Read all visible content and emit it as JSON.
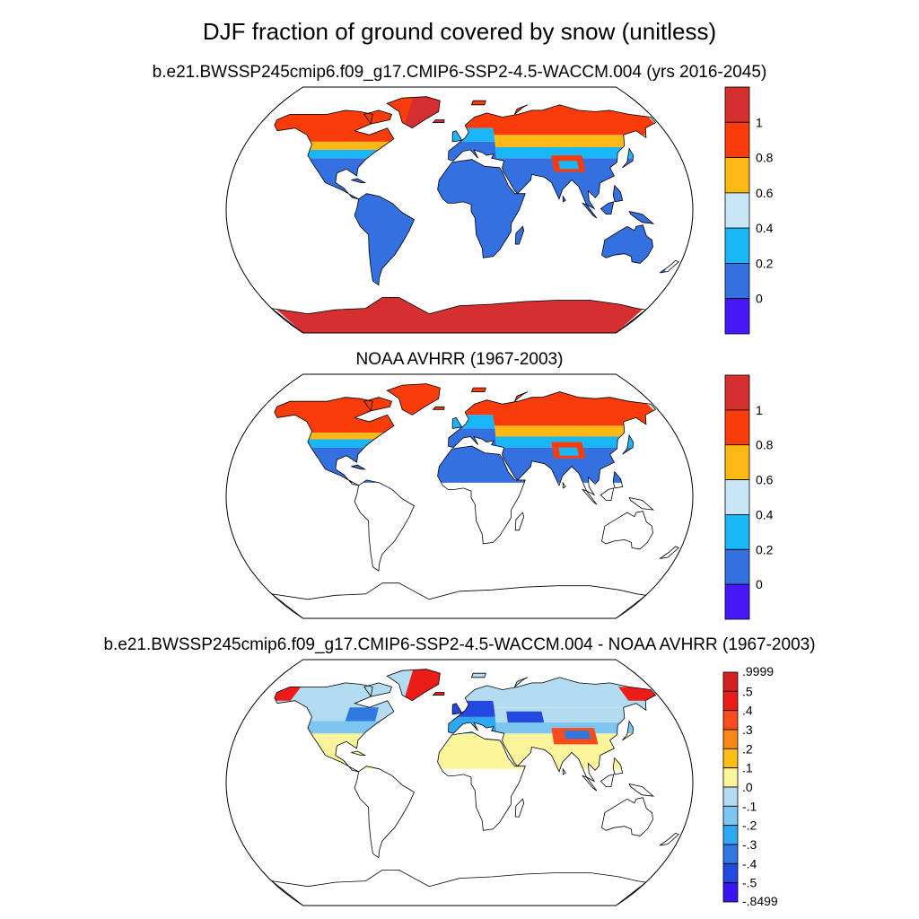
{
  "figure": {
    "title": "DJF fraction of ground covered by snow (unitless)"
  },
  "colors": {
    "land_outline": "#000000",
    "frame": "#000000"
  },
  "chart_data": [
    {
      "type": "heatmap",
      "projection": "Robinson",
      "title": "b.e21.BWSSP245cmip6.f09_g17.CMIP6-SSP2-4.5-WACCM.004 (yrs 2016-2045)",
      "colorbar": {
        "labels": [
          "1",
          "0.8",
          "0.6",
          "0.4",
          "0.2",
          "0"
        ],
        "colors": [
          "#d62f2f",
          "#fa3c0a",
          "#fcb814",
          "#c9e6f8",
          "#19b7f8",
          "#3470e0",
          "#4618f5"
        ]
      },
      "regions": [
        {
          "region": "Antarctica",
          "value": 1.0
        },
        {
          "region": "Arctic / Greenland / northern Canada",
          "value": 0.9
        },
        {
          "region": "Northern Eurasia (Siberia)",
          "value": 0.9
        },
        {
          "region": "Tibetan Plateau",
          "value": 0.7
        },
        {
          "region": "Tropics and Southern Hemisphere land",
          "value": 0.0
        }
      ]
    },
    {
      "type": "heatmap",
      "projection": "Robinson",
      "title": "NOAA AVHRR (1967-2003)",
      "colorbar": {
        "labels": [
          "1",
          "0.8",
          "0.6",
          "0.4",
          "0.2",
          "0"
        ],
        "colors": [
          "#d62f2f",
          "#fa3c0a",
          "#fcb814",
          "#c9e6f8",
          "#19b7f8",
          "#3470e0",
          "#4618f5"
        ]
      },
      "regions": [
        {
          "region": "Northern North America",
          "value": 0.9
        },
        {
          "region": "Northern Eurasia (Siberia)",
          "value": 1.0
        },
        {
          "region": "Tibetan Plateau",
          "value": 0.7
        },
        {
          "region": "Northern Hemisphere subtropics",
          "value": 0.0
        },
        {
          "region": "Southern Hemisphere",
          "value": null
        }
      ]
    },
    {
      "type": "heatmap",
      "projection": "Robinson",
      "title": "b.e21.BWSSP245cmip6.f09_g17.CMIP6-SSP2-4.5-WACCM.004 - NOAA AVHRR (1967-2003)",
      "colorbar": {
        "labels": [
          ".9999",
          ".5",
          ".4",
          ".3",
          ".2",
          ".1",
          ".0",
          "-.1",
          "-.2",
          "-.3",
          "-.4",
          "-.5",
          "-.8499"
        ],
        "colors": [
          "#d42020",
          "#ec1c18",
          "#fb4c1e",
          "#fc8814",
          "#fcbf18",
          "#fcf59b",
          "#b4dcf0",
          "#7ec6f2",
          "#2fa8f2",
          "#2f78e2",
          "#2448e2",
          "#3a14f2"
        ]
      },
      "regions": [
        {
          "region": "Northern North America",
          "value": -0.05
        },
        {
          "region": "Northern Eurasia",
          "value": -0.05
        },
        {
          "region": "Central Asia / Tibet",
          "value": 0.3
        },
        {
          "region": "Europe",
          "value": -0.4
        },
        {
          "region": "Northern Hemisphere subtropics",
          "value": 0.05
        }
      ]
    }
  ]
}
